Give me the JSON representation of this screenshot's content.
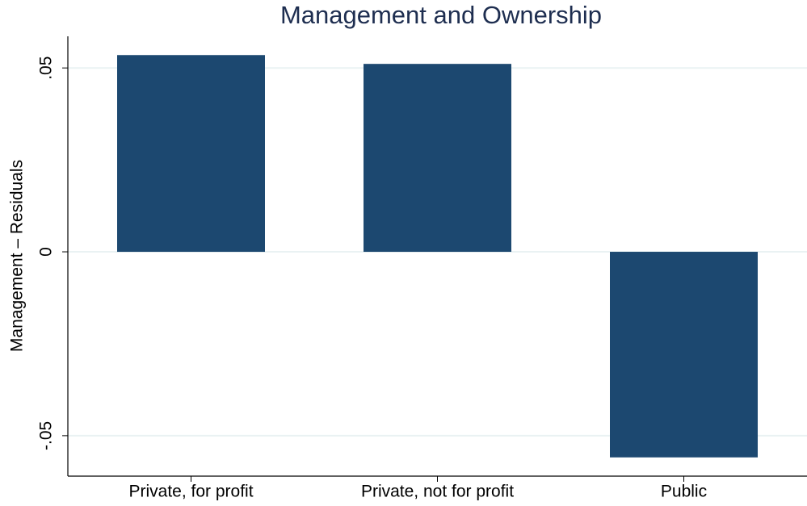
{
  "chart_data": {
    "type": "bar",
    "title": "Management and Ownership",
    "y_label": "Management – Residuals",
    "categories": [
      "Private, for profit",
      "Private, not for profit",
      "Public"
    ],
    "values": [
      0.0535,
      0.0511,
      -0.0559
    ],
    "color": "#1c4870",
    "ylim": [
      -0.061,
      0.0586
    ],
    "yticks": [
      {
        "value": -0.05,
        "label": "-.05"
      },
      0,
      {
        "value": 0.05,
        "label": ".05"
      }
    ],
    "grid": true
  }
}
